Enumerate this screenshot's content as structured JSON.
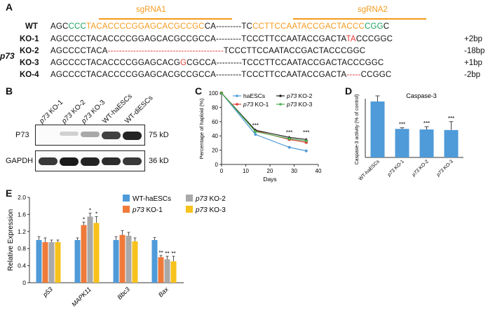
{
  "panel_a": {
    "label": "A",
    "gene": "p73",
    "sgrna1": "sgRNA1",
    "sgrna2": "sgRNA2",
    "rows": [
      {
        "name": "WT",
        "segments": [
          [
            "AGC",
            ""
          ],
          [
            "CCC",
            "green"
          ],
          [
            "TACACCCCGGAGCACGCCGC",
            "orange"
          ],
          [
            "CA---------TC",
            ""
          ],
          [
            "CCTTCCAATACCGACTACCC",
            "orange"
          ],
          [
            "CGG",
            "green"
          ],
          [
            "C",
            ""
          ]
        ],
        "note": ""
      },
      {
        "name": "KO-1",
        "segments": [
          [
            "AGCCCCTACACCCCGGAGCACGCCGCCA---------TCCCTTCCAATACCGACTA",
            ""
          ],
          [
            "TA",
            "red"
          ],
          [
            "CCCGGC",
            ""
          ]
        ],
        "note": "+2bp"
      },
      {
        "name": "KO-2",
        "segments": [
          [
            "AGCCCCTACA",
            ""
          ],
          [
            "-----------------------------------------",
            "red"
          ],
          [
            "TCCCTTCCAATACCGACTACCCGGC",
            ""
          ]
        ],
        "note": "-18bp"
      },
      {
        "name": "KO-3",
        "segments": [
          [
            "AGCCCCTACACCCCGGAGCACG",
            ""
          ],
          [
            "G",
            "red"
          ],
          [
            "CGCCA---------TCCCTTCCAATACCGACTACCCGGC",
            ""
          ]
        ],
        "note": "+1bp"
      },
      {
        "name": "KO-4",
        "segments": [
          [
            "AGCCCCTACACCCCGGAGCACGCCGCCA---------TCCCTTCCAATACCGACTA",
            ""
          ],
          [
            "-----",
            "red"
          ],
          [
            "CCGGC",
            ""
          ]
        ],
        "note": "-2bp"
      }
    ]
  },
  "panel_b": {
    "label": "B",
    "lanes": [
      {
        "italic": "p73",
        "rest": " KO-1"
      },
      {
        "italic": "p73",
        "rest": " KO-2"
      },
      {
        "italic": "p73",
        "rest": " KO-3"
      },
      {
        "italic": "",
        "rest": "WT-haESCs"
      },
      {
        "italic": "",
        "rest": "WT-diESCs"
      }
    ],
    "blots": [
      {
        "name": "P73",
        "size": "75 kD",
        "intensities": [
          0.0,
          0.05,
          0.25,
          0.8,
          0.95
        ]
      },
      {
        "name": "GAPDH",
        "size": "36 kD",
        "intensities": [
          0.85,
          1.0,
          0.95,
          0.9,
          0.85
        ]
      }
    ]
  },
  "panel_c": {
    "label": "C",
    "chart_data": {
      "type": "line",
      "xlabel": "Days",
      "ylabel": "Percentage of haploid (%)",
      "xlim": [
        0,
        40
      ],
      "ylim": [
        0,
        100
      ],
      "xticks": [
        0,
        10,
        20,
        30,
        40
      ],
      "yticks": [
        0,
        20,
        40,
        60,
        80,
        100
      ],
      "x": [
        0,
        14,
        28,
        35
      ],
      "series": [
        {
          "name": "haESCs",
          "italic": "",
          "values": [
            100,
            42,
            24,
            19
          ],
          "color": "#4f9bd9",
          "marker": "circle"
        },
        {
          "name": " KO-1",
          "italic": "p73",
          "values": [
            100,
            47,
            35,
            31
          ],
          "color": "#e53935",
          "marker": "square"
        },
        {
          "name": " KO-2",
          "italic": "p73",
          "values": [
            100,
            48,
            38,
            35
          ],
          "color": "#222222",
          "marker": "triangle"
        },
        {
          "name": " KO-3",
          "italic": "p73",
          "values": [
            100,
            46,
            36,
            33
          ],
          "color": "#4caf50",
          "marker": "diamond"
        }
      ],
      "annotations": [
        {
          "x": 14,
          "y": 52,
          "text": "***"
        },
        {
          "x": 28,
          "y": 42,
          "text": "***"
        },
        {
          "x": 35,
          "y": 42,
          "text": "***"
        }
      ]
    }
  },
  "panel_d": {
    "label": "D",
    "chart_data": {
      "type": "bar",
      "title": "Caspase-3",
      "ylabel": "Caspase-3 activity (% of control)",
      "ylim": [
        0,
        100
      ],
      "categories": [
        {
          "italic": "",
          "rest": "WT-haESCs"
        },
        {
          "italic": "p73",
          "rest": " KO-1"
        },
        {
          "italic": "p73",
          "rest": " KO-2"
        },
        {
          "italic": "p73",
          "rest": " KO-3"
        }
      ],
      "values": [
        100,
        51,
        50,
        49
      ],
      "errors": [
        10,
        2,
        5,
        15
      ],
      "sig": [
        "",
        "***",
        "***",
        "***"
      ],
      "color": "#4f9bd9"
    }
  },
  "panel_e": {
    "label": "E",
    "chart_data": {
      "type": "bar",
      "ylabel": "Relative Expression",
      "ylim": [
        0,
        2.0
      ],
      "yticks": [
        "0",
        "0.4",
        "0.8",
        "1.2",
        "1.6",
        "2.0"
      ],
      "categories": [
        "p53",
        "MAPK11",
        "Bbc3",
        "Bax"
      ],
      "series": [
        {
          "name": "WT-haESCs",
          "italic": "",
          "color": "#4f9bd9",
          "values": [
            1.0,
            1.0,
            1.0,
            1.0
          ],
          "errors": [
            0.08,
            0.05,
            0.08,
            0.06
          ],
          "sig": [
            "",
            "",
            "",
            ""
          ]
        },
        {
          "name": " KO-1",
          "italic": "p73",
          "color": "#ef7a3a",
          "values": [
            0.95,
            1.35,
            1.12,
            0.6
          ],
          "errors": [
            0.1,
            0.07,
            0.1,
            0.04
          ],
          "sig": [
            "",
            "*",
            "",
            "**"
          ]
        },
        {
          "name": " KO-2",
          "italic": "p73",
          "color": "#a9a9a9",
          "values": [
            0.95,
            1.55,
            1.1,
            0.55
          ],
          "errors": [
            0.05,
            0.08,
            0.08,
            0.07
          ],
          "sig": [
            "",
            "*",
            "",
            "**"
          ]
        },
        {
          "name": " KO-3",
          "italic": "p73",
          "color": "#f7c21c",
          "values": [
            0.95,
            1.4,
            0.97,
            0.5
          ],
          "errors": [
            0.05,
            0.15,
            0.08,
            0.12
          ],
          "sig": [
            "",
            "*",
            "",
            "**"
          ]
        }
      ]
    }
  }
}
